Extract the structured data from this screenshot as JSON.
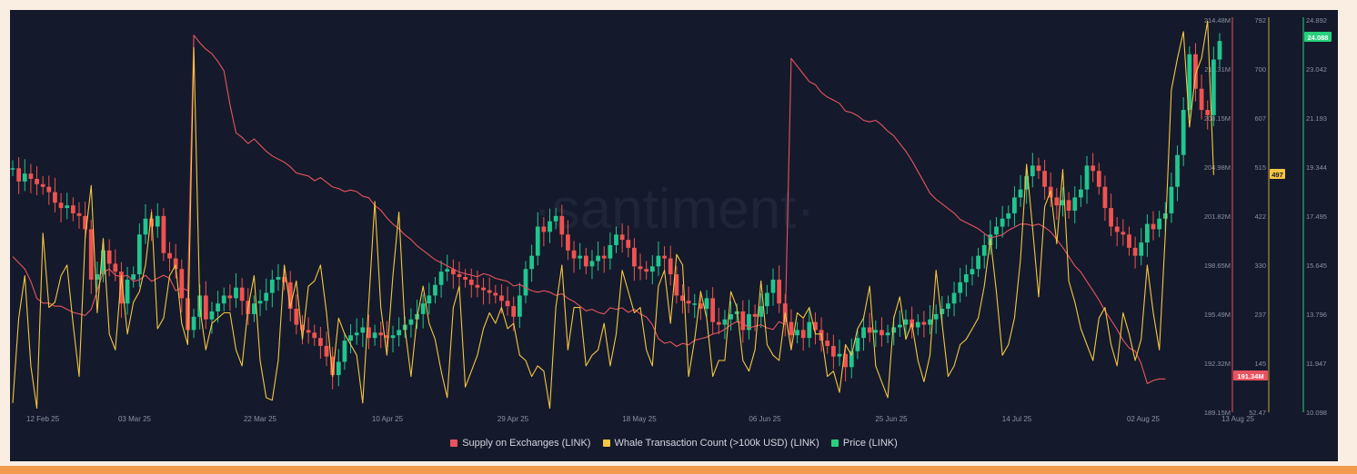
{
  "watermark": "·santiment·",
  "colors": {
    "supply": "#e8535f",
    "whale": "#f5c542",
    "price_up": "#21c58e",
    "price_down": "#ef5350",
    "price_line": "#26d07c",
    "background": "#141a2b"
  },
  "chart_data": {
    "type": "line",
    "x_tick_labels": [
      "12 Feb 25",
      "03 Mar 25",
      "22 Mar 25",
      "10 Apr 25",
      "29 Apr 25",
      "18 May 25",
      "06 Jun 25",
      "25 Jun 25",
      "14 Jul 25",
      "02 Aug 25",
      "13 Aug 25"
    ],
    "axes": {
      "supply": {
        "ticks": [
          "214.48M",
          "211.31M",
          "208.15M",
          "204.98M",
          "201.82M",
          "198.65M",
          "195.49M",
          "192.32M",
          "189.15M"
        ],
        "range": [
          189.15,
          214.48
        ],
        "current_label": "191.34M"
      },
      "whale": {
        "ticks": [
          "792",
          "700",
          "607",
          "515",
          "422",
          "330",
          "237",
          "145",
          "52.47"
        ],
        "range": [
          52.47,
          792
        ],
        "current_label": "497"
      },
      "price": {
        "ticks": [
          "24.892",
          "23.042",
          "21.193",
          "19.344",
          "17.495",
          "15.645",
          "13.796",
          "11.947",
          "10.098"
        ],
        "range": [
          10.098,
          24.892
        ],
        "current_label": "24.088"
      }
    },
    "series": [
      {
        "name": "Supply on Exchanges (LINK)",
        "axis": "supply",
        "unit": "M",
        "values": [
          199.2,
          198.8,
          198.4,
          197.6,
          196.5,
          196.2,
          196.2,
          196.0,
          196.0,
          195.8,
          195.6,
          195.5,
          195.4,
          195.8,
          197.0,
          198.2,
          198.4,
          198.0,
          197.9,
          198.0,
          197.6,
          197.7,
          198.0,
          197.6,
          197.8,
          198.0,
          197.8,
          197.0,
          197.2,
          197.0,
          213.5,
          213.0,
          212.6,
          212.3,
          211.8,
          211.2,
          209.0,
          207.2,
          206.9,
          206.5,
          206.8,
          206.4,
          206.0,
          205.7,
          205.5,
          205.3,
          205.0,
          204.6,
          204.5,
          204.4,
          204.1,
          204.3,
          204.0,
          203.7,
          203.6,
          203.4,
          203.5,
          203.4,
          203.1,
          203.0,
          202.5,
          202.2,
          201.7,
          201.3,
          201.0,
          200.6,
          200.3,
          199.9,
          199.6,
          199.3,
          199.0,
          198.8,
          198.6,
          198.4,
          198.2,
          198.1,
          198.0,
          197.9,
          198.1,
          198.0,
          197.8,
          197.7,
          197.6,
          197.3,
          197.4,
          197.2,
          197.0,
          196.9,
          197.0,
          196.9,
          196.7,
          196.8,
          196.5,
          196.3,
          196.0,
          195.7,
          195.8,
          195.6,
          195.5,
          195.9,
          195.8,
          195.9,
          195.6,
          195.8,
          195.5,
          195.3,
          194.8,
          193.9,
          193.6,
          193.7,
          193.4,
          193.6,
          193.5,
          193.8,
          193.9,
          194.0,
          194.2,
          194.3,
          194.5,
          194.8,
          195.0,
          194.9,
          194.6,
          194.7,
          194.8,
          194.6,
          194.5,
          195.0,
          194.8,
          212.0,
          211.5,
          211.0,
          210.5,
          210.3,
          209.8,
          209.5,
          209.3,
          209.1,
          208.6,
          208.5,
          208.3,
          208.0,
          207.9,
          208.0,
          207.7,
          207.3,
          207.0,
          206.5,
          206.0,
          205.4,
          204.7,
          204.0,
          203.3,
          202.9,
          202.6,
          202.3,
          202.0,
          201.6,
          201.4,
          201.2,
          201.0,
          200.7,
          200.4,
          200.5,
          200.6,
          200.9,
          201.1,
          201.3,
          201.3,
          201.2,
          201.3,
          201.1,
          200.8,
          200.3,
          199.8,
          199.2,
          198.6,
          198.2,
          197.6,
          197.0,
          196.4,
          195.7,
          195.1,
          194.5,
          193.8,
          193.3,
          193.1,
          192.3,
          191.0,
          191.2,
          191.3,
          191.3
        ]
      },
      {
        "name": "Whale Transaction Count (>100k USD) (LINK)",
        "axis": "whale",
        "unit": "count",
        "values": [
          70,
          230,
          310,
          140,
          60,
          390,
          250,
          260,
          310,
          330,
          220,
          120,
          380,
          480,
          240,
          380,
          200,
          170,
          310,
          200,
          260,
          280,
          330,
          430,
          210,
          230,
          310,
          330,
          220,
          180,
          740,
          250,
          170,
          220,
          230,
          240,
          240,
          170,
          140,
          250,
          310,
          150,
          80,
          75,
          150,
          330,
          250,
          300,
          190,
          290,
          300,
          330,
          240,
          120,
          230,
          200,
          180,
          160,
          70,
          260,
          450,
          250,
          160,
          310,
          430,
          210,
          120,
          230,
          290,
          220,
          190,
          130,
          80,
          250,
          290,
          100,
          130,
          160,
          210,
          240,
          220,
          250,
          210,
          220,
          160,
          150,
          120,
          140,
          130,
          60,
          250,
          330,
          170,
          250,
          250,
          140,
          160,
          170,
          220,
          140,
          200,
          320,
          280,
          240,
          250,
          170,
          140,
          290,
          320,
          220,
          350,
          330,
          120,
          190,
          280,
          230,
          120,
          150,
          150,
          280,
          250,
          150,
          130,
          170,
          300,
          180,
          160,
          150,
          240,
          170,
          240,
          230,
          250,
          200,
          200,
          120,
          130,
          90,
          180,
          160,
          210,
          230,
          290,
          140,
          110,
          80,
          230,
          270,
          190,
          220,
          150,
          110,
          160,
          320,
          220,
          120,
          140,
          180,
          190,
          210,
          230,
          290,
          380,
          280,
          160,
          180,
          230,
          340,
          520,
          400,
          270,
          440,
          470,
          370,
          510,
          300,
          260,
          210,
          180,
          150,
          230,
          250,
          180,
          140,
          240,
          200,
          150,
          190,
          330,
          240,
          170,
          390,
          660,
          720,
          770,
          590,
          690,
          720,
          790,
          500
        ]
      },
      {
        "name": "Price (LINK)",
        "axis": "price",
        "unit": "USD",
        "type": "candlestick",
        "closes": [
          19.3,
          18.8,
          19.1,
          18.9,
          18.7,
          18.6,
          18.4,
          18.0,
          17.8,
          17.9,
          17.6,
          17.5,
          17.0,
          15.1,
          15.3,
          16.2,
          15.7,
          15.4,
          14.2,
          15.1,
          15.3,
          16.8,
          17.4,
          17.1,
          17.5,
          16.1,
          15.9,
          15.5,
          14.4,
          13.2,
          13.7,
          14.5,
          13.6,
          13.9,
          14.2,
          14.5,
          14.4,
          14.8,
          14.3,
          13.8,
          14.2,
          14.3,
          14.6,
          15.1,
          15.2,
          15.0,
          14.0,
          13.4,
          13.2,
          13.1,
          12.9,
          12.6,
          12.2,
          11.5,
          12.0,
          12.8,
          13.0,
          13.1,
          13.3,
          12.9,
          13.1,
          13.0,
          12.9,
          13.0,
          13.2,
          13.4,
          13.6,
          13.8,
          14.2,
          14.5,
          14.9,
          15.4,
          15.5,
          15.3,
          15.2,
          15.1,
          14.9,
          14.8,
          14.7,
          14.6,
          14.5,
          14.3,
          14.1,
          13.7,
          14.5,
          15.5,
          16.0,
          17.1,
          16.9,
          17.3,
          17.5,
          16.8,
          16.2,
          15.9,
          16.0,
          15.6,
          15.8,
          16.0,
          15.9,
          16.4,
          16.8,
          16.6,
          16.3,
          15.6,
          15.5,
          15.4,
          15.6,
          16.0,
          15.9,
          15.3,
          14.5,
          14.3,
          14.2,
          14.2,
          14.0,
          14.4,
          13.5,
          13.4,
          13.6,
          13.8,
          13.9,
          13.2,
          13.8,
          13.7,
          14.1,
          14.6,
          15.1,
          14.2,
          13.5,
          13.0,
          13.2,
          12.9,
          13.5,
          13.2,
          12.8,
          12.6,
          12.2,
          12.3,
          11.8,
          12.4,
          12.9,
          13.3,
          13.1,
          13.2,
          13.0,
          13.1,
          13.3,
          13.4,
          13.6,
          13.3,
          13.5,
          13.4,
          13.6,
          13.8,
          14.0,
          14.2,
          14.6,
          15.0,
          15.3,
          15.5,
          16.0,
          16.4,
          16.8,
          17.1,
          17.4,
          17.6,
          18.2,
          18.5,
          19.0,
          19.4,
          19.2,
          18.6,
          18.2,
          17.9,
          18.1,
          17.7,
          18.2,
          18.5,
          19.4,
          19.2,
          18.6,
          17.8,
          17.1,
          16.9,
          16.8,
          16.3,
          16.0,
          16.5,
          17.2,
          17.0,
          17.4,
          17.6,
          18.6,
          19.8,
          21.5,
          23.6,
          22.3,
          21.5,
          21.3,
          23.4,
          24.1
        ]
      }
    ]
  },
  "legend": [
    {
      "label": "Supply on Exchanges (LINK)",
      "color": "#e8535f"
    },
    {
      "label": "Whale Transaction Count (>100k USD) (LINK)",
      "color": "#f5c542"
    },
    {
      "label": "Price (LINK)",
      "color": "#26d07c"
    }
  ]
}
